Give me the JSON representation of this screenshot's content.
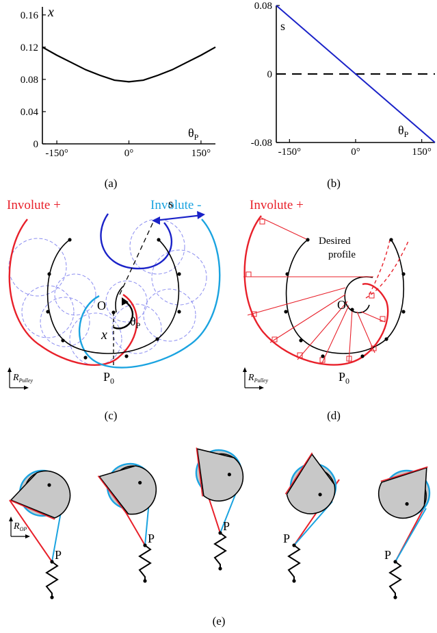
{
  "colors": {
    "red": "#e8202a",
    "light_blue": "#1aa3e0",
    "dark_blue": "#1a22c8",
    "dashed_purple": "#8a8cf0",
    "gray_fill": "#c8c8c8"
  },
  "captions": {
    "a": "(a)",
    "b": "(b)",
    "c": "(c)",
    "d": "(d)",
    "e": "(e)"
  },
  "labels": {
    "involute_plus": "Involute +",
    "involute_minus": "Involute -",
    "desired_profile_1": "Desired",
    "desired_profile_2": "profile",
    "s": "s",
    "O": "O",
    "x": "x",
    "theta": "θ",
    "sub_P": "P",
    "P0": "P",
    "sub_0": "0",
    "P": "P",
    "R": "R",
    "pulley": "Pulley",
    "op": "OP"
  },
  "chart_data": [
    {
      "type": "line",
      "panel": "(a)",
      "xlabel": "θP",
      "ylabel": "x",
      "xlim": [
        -180,
        180
      ],
      "ylim": [
        0,
        0.17
      ],
      "x_ticks": [
        "-150°",
        "0°",
        "150°"
      ],
      "y_ticks": [
        "0",
        "0.04",
        "0.08",
        "0.12",
        "0.16"
      ],
      "x": [
        -180,
        -150,
        -120,
        -90,
        -60,
        -30,
        0,
        30,
        60,
        90,
        120,
        150,
        180
      ],
      "series": [
        {
          "values": [
            0.12,
            0.11,
            0.101,
            0.092,
            0.085,
            0.079,
            0.077,
            0.079,
            0.085,
            0.092,
            0.101,
            0.11,
            0.12
          ]
        }
      ]
    },
    {
      "type": "line",
      "panel": "(b)",
      "xlabel": "θP",
      "ylabel": "s",
      "xlim": [
        -180,
        180
      ],
      "ylim": [
        -0.08,
        0.08
      ],
      "x_ticks": [
        "-150°",
        "0°",
        "150°"
      ],
      "y_ticks": [
        "-0.08",
        "0",
        "0.08"
      ],
      "x": [
        -180,
        180
      ],
      "series": [
        {
          "values": [
            0.08,
            -0.08
          ]
        }
      ],
      "reference_line": {
        "y": 0,
        "style": "dashed"
      }
    }
  ]
}
